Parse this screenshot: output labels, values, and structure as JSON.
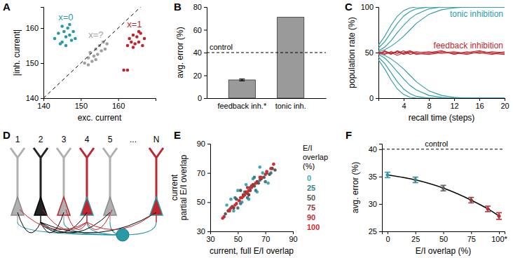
{
  "chart_data": [
    {
      "type": "scatter",
      "title": "A",
      "xlabel": "exc. current",
      "ylabel": "|inh. current|",
      "xlim": [
        140,
        170
      ],
      "ylim": [
        140,
        166
      ],
      "xticks": [
        140,
        150,
        160
      ],
      "yticks": [
        140,
        150,
        160
      ],
      "series": [
        {
          "name": "x=0",
          "color": "#2a9aa8",
          "x": [
            143,
            144,
            145,
            145.5,
            146,
            146.5,
            147,
            147.5,
            148,
            144.5,
            146,
            148.5,
            145,
            147
          ],
          "values": [
            157,
            158.5,
            156,
            159,
            157.5,
            160,
            158,
            156.5,
            159,
            155.5,
            155,
            157,
            160.5,
            161
          ]
        },
        {
          "name": "x=?",
          "color": "#a0a0a0",
          "x": [
            151,
            152,
            152.5,
            153,
            153.5,
            154,
            154.5,
            155,
            155.5,
            156,
            156.5,
            152,
            154,
            157
          ],
          "values": [
            150,
            151.5,
            153,
            150.5,
            152,
            154,
            152.5,
            155,
            153.5,
            156,
            154,
            149.5,
            151,
            155.5
          ]
        },
        {
          "name": "x=1",
          "color": "#c0262d",
          "x": [
            162.5,
            163,
            163.5,
            164,
            164.5,
            165,
            165.5,
            166,
            166.5,
            167,
            164,
            165.5,
            161.5,
            162.5
          ],
          "values": [
            155,
            157,
            156,
            158,
            155.5,
            157.5,
            156,
            158.5,
            155,
            157,
            154.5,
            159,
            148,
            148
          ]
        },
        {
          "type": "line",
          "line_style": "dashed",
          "color": "#000000",
          "x": [
            140,
            166
          ],
          "values": [
            140,
            166
          ]
        }
      ]
    },
    {
      "type": "bar",
      "title": "B",
      "ylabel": "avg. error (%)",
      "categories": [
        "feedback inh.*",
        "tonic inh."
      ],
      "values": [
        16,
        71
      ],
      "errors": [
        0.8,
        null
      ],
      "color": "#9a9a9a",
      "ylim": [
        0,
        80
      ],
      "yticks": [
        0,
        20,
        40,
        60,
        80
      ],
      "hlines": [
        {
          "value": 40,
          "label": "control"
        }
      ]
    },
    {
      "type": "line",
      "title": "C",
      "xlabel": "recall time (steps)",
      "ylabel": "population rate (%)",
      "x": [
        0,
        1,
        2,
        3,
        4,
        5,
        6,
        8,
        10,
        12,
        14,
        16,
        18,
        20
      ],
      "xlim": [
        0,
        20
      ],
      "ylim": [
        0,
        100
      ],
      "xticks": [
        4,
        8,
        12,
        16,
        20
      ],
      "yticks": [
        0,
        50,
        100
      ],
      "series": [
        {
          "color": "#2a9aa8",
          "values": [
            55,
            62,
            72,
            82,
            90,
            95,
            98,
            100,
            100,
            100,
            100,
            100,
            100,
            100
          ]
        },
        {
          "color": "#2a9aa8",
          "values": [
            52,
            56,
            63,
            72,
            80,
            87,
            92,
            98,
            100,
            100,
            100,
            100,
            100,
            100
          ]
        },
        {
          "color": "#2a9aa8",
          "values": [
            58,
            68,
            80,
            90,
            96,
            99,
            100,
            100,
            100,
            100,
            100,
            100,
            100,
            100
          ]
        },
        {
          "color": "#2a9aa8",
          "values": [
            51,
            53,
            57,
            62,
            68,
            75,
            82,
            92,
            97,
            99,
            100,
            100,
            100,
            100
          ]
        },
        {
          "color": "#2a9aa8",
          "values": [
            45,
            38,
            28,
            18,
            10,
            5,
            2,
            0,
            0,
            0,
            0,
            0,
            0,
            0
          ]
        },
        {
          "color": "#2a9aa8",
          "values": [
            48,
            44,
            37,
            29,
            21,
            14,
            9,
            3,
            1,
            0,
            0,
            0,
            0,
            0
          ]
        },
        {
          "color": "#2a9aa8",
          "values": [
            42,
            32,
            20,
            10,
            4,
            1,
            0,
            0,
            0,
            0,
            0,
            0,
            0,
            0
          ]
        },
        {
          "color": "#2a9aa8",
          "values": [
            49,
            47,
            43,
            38,
            32,
            25,
            18,
            8,
            3,
            1,
            0,
            0,
            0,
            0
          ]
        },
        {
          "color": "#c0262d",
          "values": [
            50,
            48,
            51,
            49,
            52,
            48,
            50,
            51,
            49,
            50,
            48,
            51,
            50,
            49
          ]
        },
        {
          "color": "#c0262d",
          "values": [
            49,
            51,
            48,
            52,
            49,
            51,
            48,
            50,
            52,
            48,
            51,
            49,
            51,
            50
          ]
        },
        {
          "color": "#c0262d",
          "values": [
            51,
            49,
            50,
            47,
            50,
            52,
            49,
            48,
            50,
            51,
            49,
            50,
            48,
            51
          ]
        },
        {
          "color": "#c0262d",
          "values": [
            48,
            52,
            49,
            51,
            48,
            50,
            51,
            49,
            51,
            49,
            50,
            52,
            49,
            48
          ]
        }
      ],
      "annotations": [
        {
          "text": "tonic inhibition",
          "color": "#2a9aa8"
        },
        {
          "text": "feedback inhibition",
          "color": "#c0262d"
        }
      ]
    },
    {
      "type": "diagram",
      "title": "D",
      "labels": [
        "1",
        "2",
        "3",
        "4",
        "5",
        "...",
        "N"
      ]
    },
    {
      "type": "scatter",
      "title": "E",
      "xlabel": "current, full E/I overlap",
      "ylabel": [
        "current",
        "partial E/I overlap"
      ],
      "xlim": [
        30,
        90
      ],
      "ylim": [
        30,
        90
      ],
      "xticks": [
        30,
        50,
        70,
        90
      ],
      "yticks": [
        30,
        50,
        70,
        90
      ],
      "legend": "right",
      "legend_title": [
        "E/I",
        "overlap",
        "(%)"
      ],
      "series": [
        {
          "name": "0",
          "color": "#3fa9b5",
          "x": [
            42,
            47,
            50,
            53,
            56,
            58,
            61,
            64,
            68,
            72,
            45,
            66
          ],
          "values": [
            48,
            44,
            58,
            50,
            62,
            52,
            66,
            57,
            70,
            63,
            52,
            74
          ]
        },
        {
          "name": "25",
          "color": "#3d7f88",
          "x": [
            44,
            48,
            52,
            55,
            57,
            60,
            63,
            66,
            70,
            74,
            50,
            62
          ],
          "values": [
            45,
            53,
            49,
            57,
            53,
            61,
            58,
            65,
            64,
            70,
            46,
            67
          ]
        },
        {
          "name": "50",
          "color": "#5a5a5a",
          "x": [
            41,
            46,
            49,
            54,
            57,
            59,
            62,
            65,
            69,
            73,
            52,
            77
          ],
          "values": [
            42,
            47,
            52,
            54,
            56,
            60,
            61,
            63,
            67,
            69,
            58,
            72
          ]
        },
        {
          "name": "75",
          "color": "#8a3a3a",
          "x": [
            43,
            47,
            51,
            54,
            56,
            59,
            61,
            64,
            67,
            71,
            58,
            75
          ],
          "values": [
            44,
            46,
            51,
            55,
            57,
            58,
            62,
            64,
            66,
            70,
            55,
            73
          ]
        },
        {
          "name": "90",
          "color": "#b8323a",
          "x": [
            40,
            45,
            49,
            52,
            55,
            58,
            60,
            63,
            66,
            70,
            74,
            57
          ],
          "values": [
            40,
            46,
            49,
            53,
            55,
            58,
            61,
            63,
            67,
            69,
            73,
            60
          ]
        },
        {
          "name": "100",
          "color": "#d42a30",
          "x": [
            39,
            44,
            48,
            51,
            55,
            57,
            60,
            63,
            67,
            71,
            76,
            53
          ],
          "values": [
            39,
            44,
            48,
            51,
            55,
            57,
            60,
            63,
            67,
            71,
            76,
            53
          ]
        }
      ]
    },
    {
      "type": "line",
      "title": "F",
      "xlabel": "E/I overlap (%)",
      "ylabel": "avg. error (%)",
      "x": [
        0,
        25,
        50,
        75,
        90,
        100
      ],
      "xlim": [
        -5,
        105
      ],
      "ylim": [
        25,
        41
      ],
      "xticks": [
        0,
        25,
        50,
        75,
        {
          "value": 100,
          "label": "100*"
        }
      ],
      "yticks": [
        25,
        30,
        35,
        40
      ],
      "marker": "circle",
      "series": [
        {
          "color": "#000000",
          "values": [
            35.3,
            34.4,
            32.9,
            30.7,
            29.1,
            27.8
          ],
          "errors": [
            0.5,
            0.5,
            0.5,
            0.5,
            0.5,
            0.6
          ],
          "colors": [
            "#2a9aa8",
            "#3d7f88",
            "#5a5a5a",
            "#8a3a3a",
            "#b8323a",
            "#c0262d"
          ]
        }
      ],
      "hlines": [
        {
          "value": 40,
          "label": "control"
        }
      ]
    }
  ]
}
